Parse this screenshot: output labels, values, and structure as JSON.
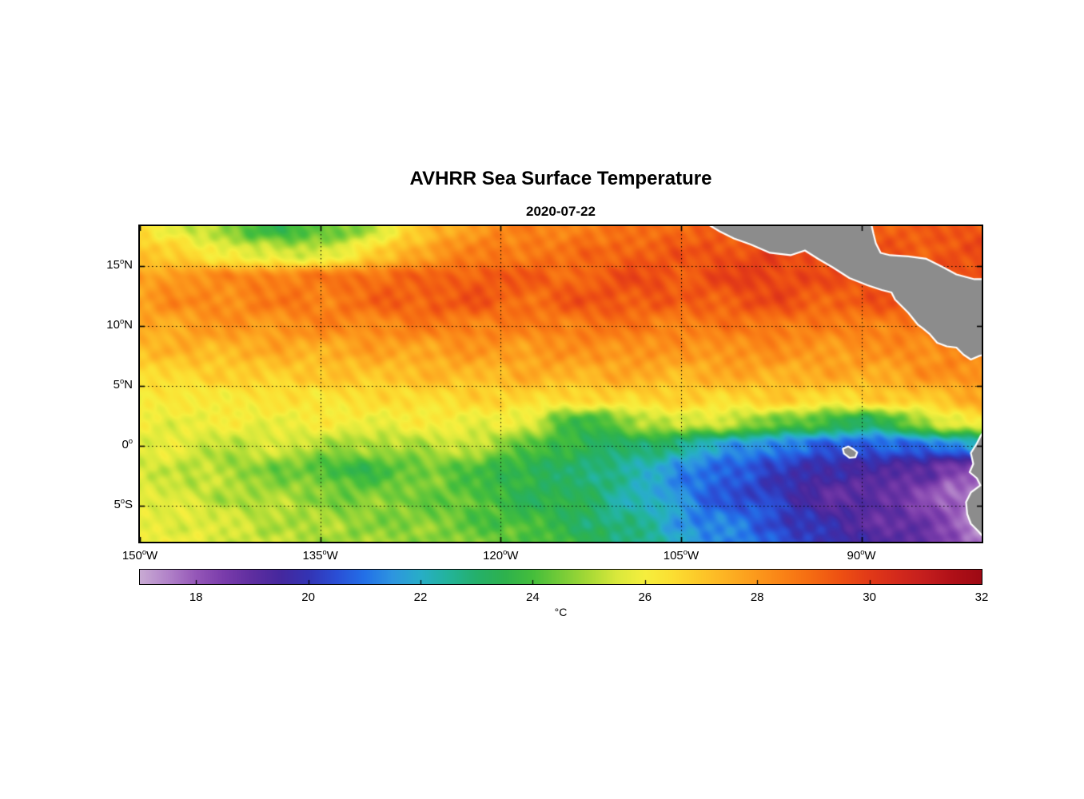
{
  "chart_data": {
    "type": "heatmap",
    "title": "AVHRR Sea Surface Temperature",
    "subtitle": "2020-07-22",
    "lon_range": [
      -150,
      -80
    ],
    "lat_range": [
      -8,
      18.33
    ],
    "grid_on": true,
    "x_ticks": [
      {
        "value": -150,
        "deg": "150",
        "hemi": "W"
      },
      {
        "value": -135,
        "deg": "135",
        "hemi": "W"
      },
      {
        "value": -120,
        "deg": "120",
        "hemi": "W"
      },
      {
        "value": -105,
        "deg": "105",
        "hemi": "W"
      },
      {
        "value": -90,
        "deg": "90",
        "hemi": "W"
      }
    ],
    "y_ticks": [
      {
        "value": 15,
        "deg": "15",
        "hemi": "N"
      },
      {
        "value": 10,
        "deg": "10",
        "hemi": "N"
      },
      {
        "value": 5,
        "deg": "5",
        "hemi": "N"
      },
      {
        "value": 0,
        "deg": "0",
        "hemi": ""
      },
      {
        "value": -5,
        "deg": "5",
        "hemi": "S"
      }
    ],
    "degree_superscript": "o",
    "grid": {
      "lon_start": -150,
      "lon_step": 2.5,
      "lat_start": 18,
      "lat_step": -2,
      "units": "degC",
      "values": [
        [
          26.5,
          26.0,
          25.3,
          24.5,
          24.0,
          23.8,
          24.1,
          24.6,
          25.6,
          26.6,
          27.5,
          28.0,
          28.3,
          28.5,
          28.5,
          28.6,
          28.8,
          29.0,
          29.0,
          29.2,
          29.3,
          29.4,
          29.4,
          29.3,
          29.2,
          29.2,
          29.3,
          29.4,
          29.4
        ],
        [
          27.0,
          26.8,
          26.4,
          26.0,
          25.6,
          25.4,
          25.6,
          26.1,
          26.9,
          27.6,
          28.2,
          28.5,
          28.6,
          28.8,
          28.8,
          29.0,
          29.2,
          29.3,
          29.3,
          29.5,
          29.6,
          29.8,
          29.6,
          29.4,
          29.3,
          29.3,
          29.4,
          29.5,
          29.5
        ],
        [
          27.8,
          28.0,
          28.2,
          28.3,
          28.5,
          28.6,
          28.7,
          28.8,
          29.0,
          29.2,
          29.0,
          29.3,
          29.5,
          29.2,
          29.0,
          29.3,
          29.5,
          29.6,
          29.4,
          29.6,
          29.8,
          29.9,
          29.7,
          29.5,
          29.4,
          29.4,
          29.5,
          29.6,
          29.6
        ],
        [
          28.0,
          28.2,
          28.3,
          28.4,
          28.5,
          28.6,
          28.6,
          28.8,
          29.0,
          29.2,
          29.4,
          29.3,
          29.1,
          29.0,
          29.2,
          29.4,
          29.5,
          29.3,
          29.1,
          29.3,
          29.5,
          29.6,
          29.4,
          29.2,
          29.3,
          29.4,
          29.5,
          29.5,
          29.5
        ],
        [
          27.6,
          27.8,
          27.9,
          28.0,
          28.1,
          28.2,
          28.3,
          28.4,
          28.4,
          28.5,
          28.6,
          28.6,
          28.5,
          28.5,
          28.6,
          28.7,
          28.7,
          28.6,
          28.5,
          28.6,
          28.7,
          28.7,
          28.6,
          28.5,
          28.5,
          28.6,
          28.6,
          28.6,
          28.6
        ],
        [
          27.2,
          27.3,
          27.4,
          27.5,
          27.5,
          27.6,
          27.6,
          27.7,
          27.8,
          27.8,
          27.9,
          28.0,
          28.0,
          28.0,
          28.1,
          28.1,
          28.2,
          28.1,
          28.0,
          28.1,
          28.2,
          28.2,
          28.1,
          28.0,
          28.1,
          28.2,
          28.3,
          28.4,
          28.5
        ],
        [
          26.6,
          26.7,
          26.8,
          26.8,
          26.9,
          27.0,
          27.0,
          27.1,
          27.2,
          27.2,
          27.3,
          27.4,
          27.4,
          27.5,
          27.5,
          27.6,
          27.6,
          27.5,
          27.5,
          27.6,
          27.6,
          27.7,
          27.6,
          27.6,
          27.7,
          27.8,
          28.0,
          28.2,
          28.3
        ],
        [
          26.1,
          26.2,
          26.2,
          26.3,
          26.3,
          26.4,
          26.4,
          26.5,
          26.5,
          26.6,
          26.6,
          26.7,
          26.7,
          26.8,
          26.5,
          26.6,
          26.8,
          26.8,
          26.7,
          26.7,
          26.8,
          26.9,
          26.8,
          26.7,
          26.8,
          26.9,
          27.1,
          27.4,
          27.6
        ],
        [
          25.8,
          25.9,
          25.9,
          25.9,
          25.9,
          26.0,
          26.0,
          26.0,
          26.0,
          26.0,
          26.0,
          26.0,
          25.9,
          25.5,
          24.3,
          23.8,
          24.3,
          25.3,
          25.6,
          25.4,
          25.0,
          24.6,
          24.2,
          23.6,
          23.2,
          23.8,
          24.8,
          25.8,
          26.3
        ],
        [
          25.7,
          25.6,
          25.4,
          25.3,
          25.3,
          25.4,
          25.2,
          24.8,
          24.9,
          25.1,
          25.3,
          25.2,
          24.8,
          24.2,
          23.7,
          23.3,
          23.2,
          23.1,
          22.6,
          22.0,
          21.5,
          21.2,
          21.0,
          20.7,
          20.6,
          20.7,
          20.9,
          21.3,
          21.8
        ],
        [
          25.6,
          25.4,
          25.2,
          24.9,
          24.7,
          24.4,
          24.0,
          23.7,
          23.9,
          24.3,
          24.4,
          24.1,
          23.6,
          23.4,
          23.1,
          22.9,
          22.5,
          22.0,
          21.4,
          20.9,
          20.6,
          20.3,
          19.9,
          19.6,
          19.5,
          19.4,
          19.0,
          18.4,
          18.0
        ],
        [
          25.6,
          25.5,
          25.3,
          25.1,
          25.0,
          24.9,
          24.7,
          24.5,
          24.5,
          24.5,
          24.5,
          24.1,
          23.7,
          23.5,
          23.4,
          23.0,
          22.5,
          22.0,
          21.2,
          20.7,
          20.5,
          20.0,
          19.5,
          19.1,
          19.0,
          18.7,
          18.5,
          17.7,
          17.4
        ],
        [
          25.7,
          25.7,
          25.6,
          25.4,
          25.2,
          25.1,
          25.0,
          24.8,
          24.7,
          24.6,
          24.5,
          24.2,
          24.0,
          23.8,
          23.5,
          23.1,
          22.6,
          22.4,
          21.6,
          21.1,
          20.9,
          20.5,
          20.0,
          19.5,
          19.1,
          19.0,
          18.6,
          18.0,
          17.5
        ],
        [
          25.9,
          25.8,
          25.7,
          25.5,
          25.3,
          25.2,
          25.0,
          24.9,
          24.9,
          24.8,
          24.7,
          24.5,
          24.4,
          24.1,
          23.8,
          23.4,
          22.9,
          22.5,
          21.9,
          21.4,
          21.1,
          20.7,
          20.3,
          19.8,
          19.5,
          19.3,
          18.9,
          18.2,
          17.6
        ]
      ]
    },
    "colormap": {
      "range": [
        17,
        32
      ],
      "stops": [
        [
          17.0,
          "#C9ABD4"
        ],
        [
          17.5,
          "#B283C9"
        ],
        [
          18.0,
          "#9557B8"
        ],
        [
          18.5,
          "#7A3CAB"
        ],
        [
          19.0,
          "#5F2EA0"
        ],
        [
          19.5,
          "#46289E"
        ],
        [
          20.0,
          "#3434B4"
        ],
        [
          20.5,
          "#2B4FD6"
        ],
        [
          21.0,
          "#2371E8"
        ],
        [
          21.5,
          "#2E96E0"
        ],
        [
          22.0,
          "#28AEC8"
        ],
        [
          22.5,
          "#23B49B"
        ],
        [
          23.0,
          "#25B06B"
        ],
        [
          23.5,
          "#2EB24E"
        ],
        [
          24.0,
          "#45BE3C"
        ],
        [
          24.5,
          "#76CC38"
        ],
        [
          25.0,
          "#A8DA36"
        ],
        [
          25.5,
          "#DAE93C"
        ],
        [
          26.0,
          "#F6EF3E"
        ],
        [
          26.5,
          "#FCDF32"
        ],
        [
          27.0,
          "#FDC829"
        ],
        [
          27.5,
          "#FDB123"
        ],
        [
          28.0,
          "#FC991C"
        ],
        [
          28.5,
          "#FA8116"
        ],
        [
          29.0,
          "#F56A12"
        ],
        [
          29.5,
          "#EE5013"
        ],
        [
          30.0,
          "#E23A18"
        ],
        [
          30.5,
          "#D42A1C"
        ],
        [
          31.0,
          "#C41E1E"
        ],
        [
          31.5,
          "#B01018"
        ],
        [
          32.0,
          "#9E0A14"
        ]
      ]
    },
    "colorbar": {
      "ticks": [
        "18",
        "20",
        "22",
        "24",
        "26",
        "28",
        "30",
        "32"
      ],
      "tick_values": [
        18,
        20,
        22,
        24,
        26,
        28,
        30,
        32
      ],
      "units": "°C"
    },
    "land": {
      "fill_color": "#8C8C8C",
      "coast_color": "#FFFFFF",
      "polygons": {
        "central_america": [
          [
            -102.8,
            18.5
          ],
          [
            -101.8,
            17.9
          ],
          [
            -100.6,
            17.3
          ],
          [
            -99.2,
            16.8
          ],
          [
            -97.6,
            16.1
          ],
          [
            -95.9,
            15.9
          ],
          [
            -94.7,
            16.3
          ],
          [
            -93.6,
            15.6
          ],
          [
            -92.4,
            14.9
          ],
          [
            -91.0,
            14.0
          ],
          [
            -89.5,
            13.4
          ],
          [
            -88.3,
            13.0
          ],
          [
            -87.5,
            12.8
          ],
          [
            -87.2,
            12.2
          ],
          [
            -86.8,
            11.8
          ],
          [
            -86.1,
            11.1
          ],
          [
            -85.7,
            10.6
          ],
          [
            -85.3,
            10.1
          ],
          [
            -84.9,
            9.8
          ],
          [
            -84.3,
            9.3
          ],
          [
            -83.7,
            8.6
          ],
          [
            -82.9,
            8.3
          ],
          [
            -82.1,
            8.2
          ],
          [
            -81.5,
            7.6
          ],
          [
            -80.9,
            7.2
          ],
          [
            -80.2,
            7.5
          ],
          [
            -79.4,
            7.7
          ],
          [
            -78.3,
            7.9
          ],
          [
            -78.3,
            13.9
          ],
          [
            -80.6,
            13.9
          ],
          [
            -82.1,
            14.3
          ],
          [
            -83.2,
            14.9
          ],
          [
            -84.6,
            15.6
          ],
          [
            -86.1,
            15.8
          ],
          [
            -87.6,
            15.9
          ],
          [
            -88.4,
            16.1
          ],
          [
            -88.8,
            16.9
          ],
          [
            -89.0,
            17.7
          ],
          [
            -89.2,
            18.6
          ],
          [
            -95.0,
            19.2
          ],
          [
            -102.8,
            19.2
          ]
        ],
        "south_america": [
          [
            -79.7,
            1.4
          ],
          [
            -80.1,
            0.8
          ],
          [
            -80.4,
            0.2
          ],
          [
            -80.9,
            -0.6
          ],
          [
            -80.7,
            -1.5
          ],
          [
            -81.0,
            -2.2
          ],
          [
            -80.4,
            -2.7
          ],
          [
            -80.1,
            -3.3
          ],
          [
            -80.9,
            -3.9
          ],
          [
            -81.3,
            -4.7
          ],
          [
            -81.2,
            -5.7
          ],
          [
            -80.9,
            -6.5
          ],
          [
            -80.3,
            -7.1
          ],
          [
            -79.7,
            -7.8
          ],
          [
            -79.2,
            -8.4
          ],
          [
            -78.0,
            -8.6
          ],
          [
            -78.0,
            1.2
          ]
        ],
        "galapagos": [
          [
            -91.55,
            -0.25
          ],
          [
            -91.1,
            -0.05
          ],
          [
            -90.65,
            -0.3
          ],
          [
            -90.35,
            -0.55
          ],
          [
            -90.5,
            -0.95
          ],
          [
            -91.0,
            -1.0
          ],
          [
            -91.45,
            -0.65
          ]
        ]
      }
    }
  }
}
